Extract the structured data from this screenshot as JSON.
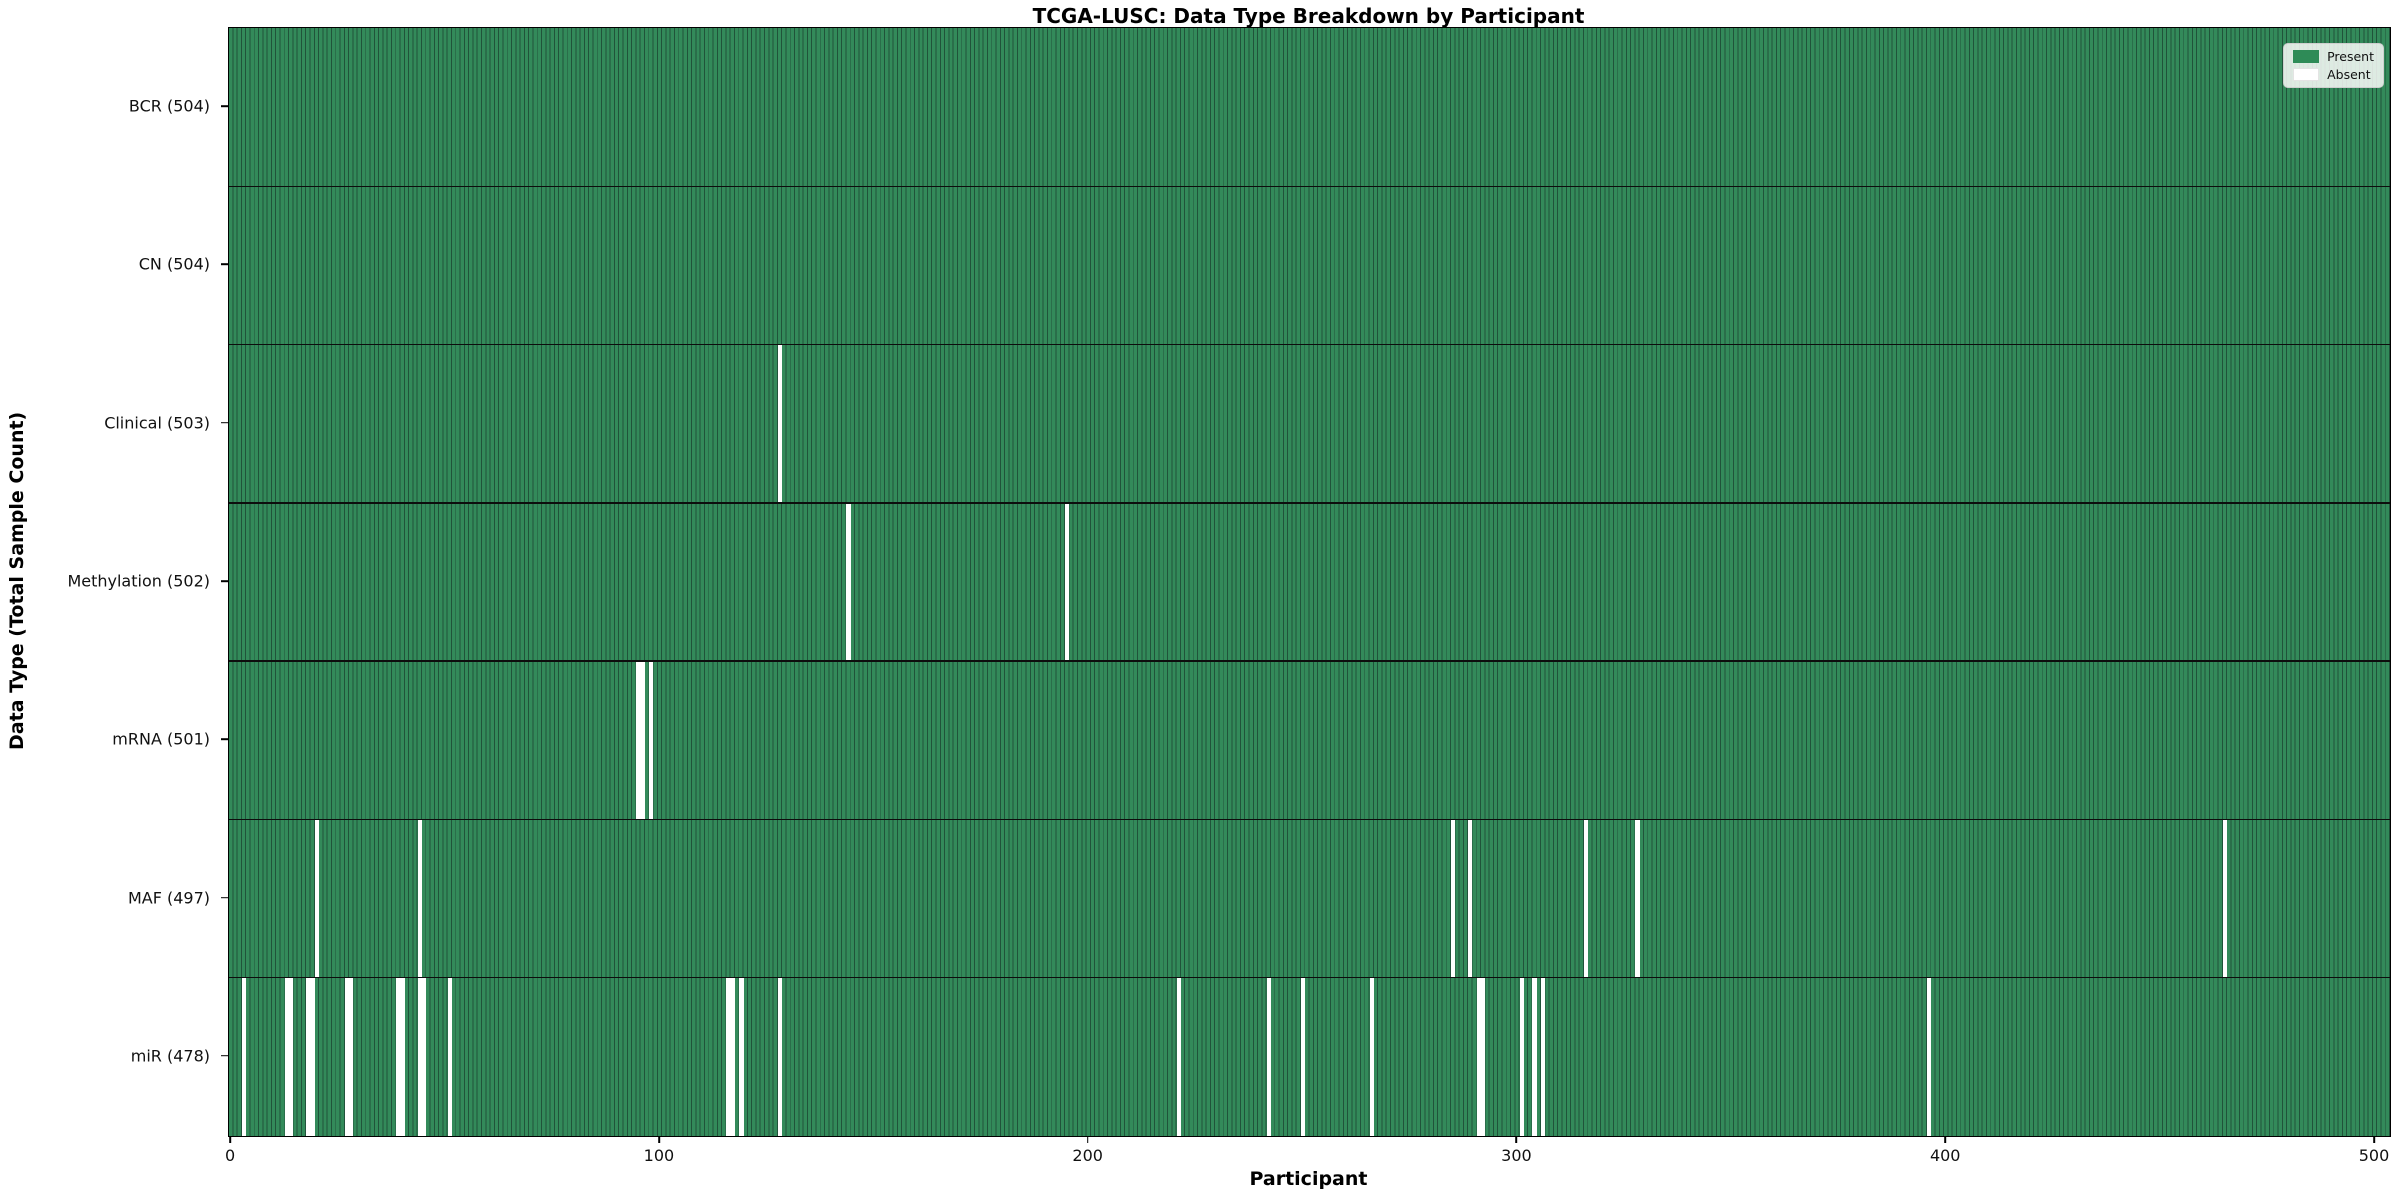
{
  "title": "TCGA-LUSC: Data Type Breakdown by Participant",
  "xlabel": "Participant",
  "ylabel": "Data Type (Total Sample Count)",
  "legend": {
    "present_label": "Present",
    "absent_label": "Absent"
  },
  "colors": {
    "present_fill": "#338a5a",
    "present_edge": "#20533a",
    "legend_present": "#2e8b57",
    "absent": "#ffffff"
  },
  "chart_data": {
    "type": "heatmap",
    "title": "TCGA-LUSC: Data Type Breakdown by Participant",
    "xlabel": "Participant",
    "ylabel": "Data Type (Total Sample Count)",
    "legend": [
      "Present",
      "Absent"
    ],
    "legend_position": "upper right",
    "grid": false,
    "n_participants": 504,
    "xlim": [
      -0.5,
      503.5
    ],
    "x_ticks": [
      0,
      100,
      200,
      300,
      400,
      500
    ],
    "rows": [
      {
        "label": "BCR (504)",
        "data_type": "BCR",
        "total": 504,
        "absent": []
      },
      {
        "label": "CN (504)",
        "data_type": "CN",
        "total": 504,
        "absent": []
      },
      {
        "label": "Clinical (503)",
        "data_type": "Clinical",
        "total": 503,
        "absent": [
          128
        ]
      },
      {
        "label": "Methylation (502)",
        "data_type": "Methylation",
        "total": 502,
        "absent": [
          144,
          195
        ]
      },
      {
        "label": "mRNA (501)",
        "data_type": "mRNA",
        "total": 501,
        "absent": [
          95,
          96,
          98
        ]
      },
      {
        "label": "MAF (497)",
        "data_type": "MAF",
        "total": 497,
        "absent": [
          20,
          44,
          285,
          289,
          316,
          328,
          465
        ]
      },
      {
        "label": "miR (478)",
        "data_type": "miR",
        "total": 478,
        "absent": [
          3,
          13,
          14,
          18,
          19,
          27,
          28,
          39,
          40,
          44,
          45,
          51,
          116,
          117,
          119,
          128,
          221,
          242,
          250,
          266,
          291,
          292,
          301,
          304,
          306,
          396
        ]
      }
    ]
  }
}
